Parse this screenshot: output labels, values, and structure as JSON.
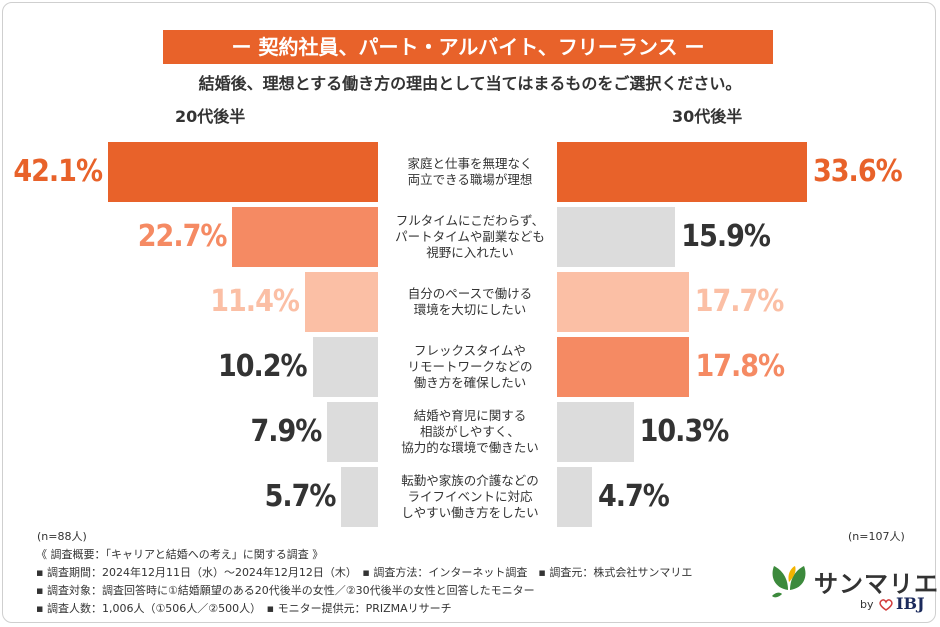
{
  "title": "ー 契約社員、パート・アルバイト、フリーランス ー",
  "subtitle": "結婚後、理想とする働き方の理由として当てはまるものをご選択ください。",
  "groups": {
    "left": "20代後半",
    "right": "30代後半"
  },
  "sample": {
    "left": "(n=88人)",
    "right": "(n=107人)"
  },
  "notes": [
    "《 調査概要：「キャリアと結婚への考え」に関する調査 》",
    "▪ 調査期間：2024年12月11日（水）〜2024年12月12日（木）　▪ 調査方法：インターネット調査　▪ 調査元：株式会社サンマリエ",
    "▪ 調査対象：調査回答時に①結婚願望のある20代後半の女性／②30代後半の女性と回答したモニター",
    "▪ 調査人数：1,006人（①506人／②500人）　▪ モニター提供元：PRIZMAリサーチ"
  ],
  "logo": {
    "name": "サンマリエ",
    "by": "by",
    "brand": "IBJ"
  },
  "colors": {
    "accent": "#e8622a",
    "mid": "#f58a63",
    "light": "#fbbfa5",
    "gray": "#dcdcdc",
    "text": "#333333"
  },
  "chart_data": {
    "type": "bar",
    "orientation": "horizontal-butterfly",
    "unit": "%",
    "categories": [
      [
        "家庭と仕事を無理なく",
        "両立できる職場が理想"
      ],
      [
        "フルタイムにこだわらず、",
        "パートタイムや副業なども",
        "視野に入れたい"
      ],
      [
        "自分のペースで働ける",
        "環境を大切にしたい"
      ],
      [
        "フレックスタイムや",
        "リモートワークなどの",
        "働き方を確保したい"
      ],
      [
        "結婚や育児に関する",
        "相談がしやすく、",
        "協力的な環境で働きたい"
      ],
      [
        "転勤や家族の介護などの",
        "ライフイベントに対応",
        "しやすい働き方をしたい"
      ]
    ],
    "series": [
      {
        "name": "20代後半",
        "values": [
          42.1,
          22.7,
          11.4,
          10.2,
          7.9,
          5.7
        ],
        "labels": [
          "42.1%",
          "22.7%",
          "11.4%",
          "10.2%",
          "7.9%",
          "5.7%"
        ],
        "fills": [
          "accent",
          "mid",
          "light",
          "gray",
          "gray",
          "gray"
        ]
      },
      {
        "name": "30代後半",
        "values": [
          33.6,
          15.9,
          17.7,
          17.8,
          10.3,
          4.7
        ],
        "labels": [
          "33.6%",
          "15.9%",
          "17.7%",
          "17.8%",
          "10.3%",
          "4.7%"
        ],
        "fills": [
          "accent",
          "gray",
          "light",
          "mid",
          "gray",
          "gray"
        ]
      }
    ]
  }
}
